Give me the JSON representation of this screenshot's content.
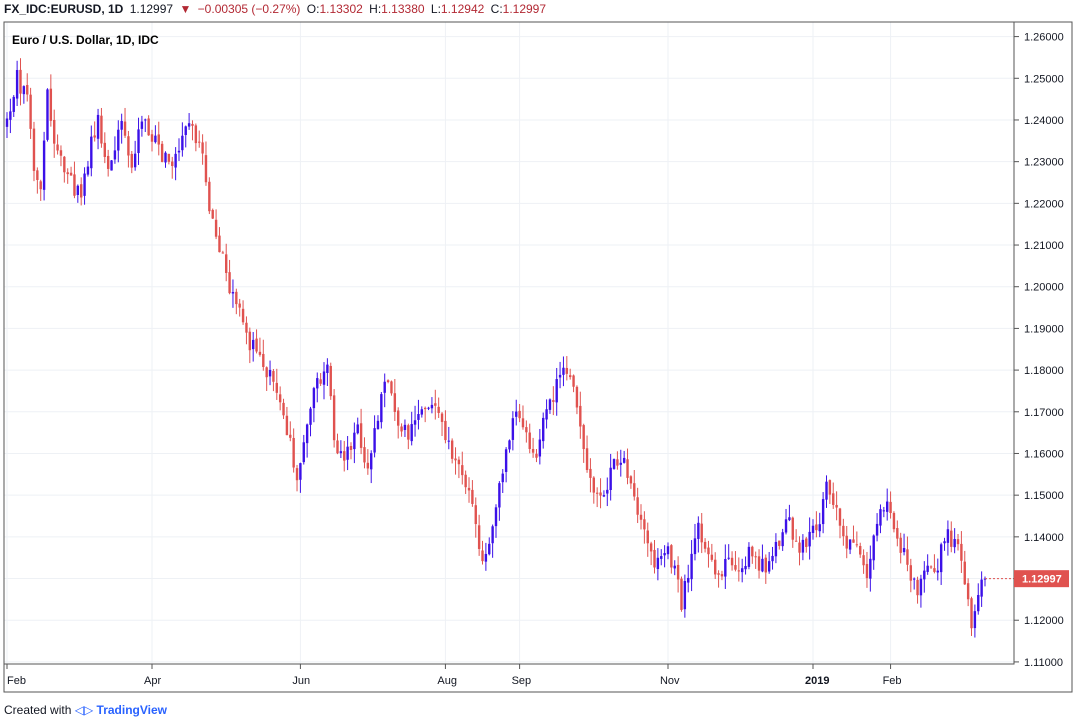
{
  "header": {
    "symbol": "FX_IDC:EURUSD, 1D",
    "last": "1.12997",
    "change": "−0.00305 (−0.27%)",
    "o_label": "O:",
    "o_val": "1.13302",
    "h_label": "H:",
    "h_val": "1.13380",
    "l_label": "L:",
    "l_val": "1.12942",
    "c_label": "C:",
    "c_val": "1.12997"
  },
  "footer": {
    "prefix": "Created with",
    "brand": "TradingView"
  },
  "colors": {
    "up": "#3b10e8",
    "down": "#e0524f",
    "grid": "#eef1f5",
    "axis": "#555555",
    "price_tag": "#e0524f"
  },
  "chart_data": {
    "type": "candlestick",
    "title": "Euro / U.S. Dollar, 1D, IDC",
    "y_ticks": [
      1.11,
      1.12,
      1.13,
      1.14,
      1.15,
      1.16,
      1.17,
      1.18,
      1.19,
      1.2,
      1.21,
      1.22,
      1.23,
      1.24,
      1.25,
      1.26
    ],
    "y_tick_labels": [
      "1.11000",
      "1.12000",
      "1.13000",
      "1.14000",
      "1.15000",
      "1.16000",
      "1.17000",
      "1.18000",
      "1.19000",
      "1.20000",
      "1.21000",
      "1.22000",
      "1.23000",
      "1.24000",
      "1.25000",
      "1.26000"
    ],
    "ylim": [
      1.1095,
      1.2635
    ],
    "x_labels": [
      {
        "label": "Feb",
        "bar": 0
      },
      {
        "label": "Apr",
        "bar": 43
      },
      {
        "label": "Jun",
        "bar": 87
      },
      {
        "label": "Aug",
        "bar": 130
      },
      {
        "label": "Sep",
        "bar": 152
      },
      {
        "label": "Nov",
        "bar": 196
      },
      {
        "label": "2019",
        "bar": 239
      },
      {
        "label": "Feb",
        "bar": 262
      }
    ],
    "bar_count": 291,
    "last_price": 1.12997,
    "last_price_label": "1.12997",
    "close_anchors": [
      [
        0,
        1.239
      ],
      [
        3,
        1.25
      ],
      [
        6,
        1.244
      ],
      [
        8,
        1.228
      ],
      [
        10,
        1.225
      ],
      [
        12,
        1.248
      ],
      [
        14,
        1.234
      ],
      [
        18,
        1.228
      ],
      [
        22,
        1.22
      ],
      [
        25,
        1.236
      ],
      [
        27,
        1.239
      ],
      [
        30,
        1.23
      ],
      [
        34,
        1.238
      ],
      [
        37,
        1.227
      ],
      [
        40,
        1.24
      ],
      [
        43,
        1.237
      ],
      [
        46,
        1.232
      ],
      [
        49,
        1.227
      ],
      [
        52,
        1.238
      ],
      [
        56,
        1.236
      ],
      [
        58,
        1.23
      ],
      [
        60,
        1.22
      ],
      [
        63,
        1.21
      ],
      [
        66,
        1.199
      ],
      [
        69,
        1.196
      ],
      [
        72,
        1.186
      ],
      [
        75,
        1.183
      ],
      [
        78,
        1.178
      ],
      [
        81,
        1.172
      ],
      [
        84,
        1.162
      ],
      [
        86,
        1.153
      ],
      [
        89,
        1.169
      ],
      [
        92,
        1.176
      ],
      [
        95,
        1.18
      ],
      [
        98,
        1.158
      ],
      [
        101,
        1.16
      ],
      [
        104,
        1.165
      ],
      [
        107,
        1.156
      ],
      [
        110,
        1.169
      ],
      [
        113,
        1.178
      ],
      [
        116,
        1.168
      ],
      [
        119,
        1.164
      ],
      [
        122,
        1.171
      ],
      [
        125,
        1.173
      ],
      [
        128,
        1.17
      ],
      [
        131,
        1.162
      ],
      [
        134,
        1.158
      ],
      [
        137,
        1.15
      ],
      [
        140,
        1.138
      ],
      [
        142,
        1.134
      ],
      [
        145,
        1.148
      ],
      [
        148,
        1.162
      ],
      [
        151,
        1.171
      ],
      [
        154,
        1.164
      ],
      [
        157,
        1.161
      ],
      [
        160,
        1.17
      ],
      [
        163,
        1.176
      ],
      [
        165,
        1.181
      ],
      [
        168,
        1.178
      ],
      [
        171,
        1.161
      ],
      [
        174,
        1.152
      ],
      [
        177,
        1.15
      ],
      [
        180,
        1.157
      ],
      [
        183,
        1.158
      ],
      [
        186,
        1.15
      ],
      [
        189,
        1.142
      ],
      [
        192,
        1.134
      ],
      [
        195,
        1.138
      ],
      [
        198,
        1.133
      ],
      [
        200,
        1.123
      ],
      [
        202,
        1.132
      ],
      [
        205,
        1.142
      ],
      [
        208,
        1.136
      ],
      [
        211,
        1.131
      ],
      [
        214,
        1.136
      ],
      [
        217,
        1.133
      ],
      [
        220,
        1.136
      ],
      [
        223,
        1.132
      ],
      [
        226,
        1.134
      ],
      [
        229,
        1.138
      ],
      [
        232,
        1.144
      ],
      [
        235,
        1.136
      ],
      [
        238,
        1.141
      ],
      [
        241,
        1.145
      ],
      [
        243,
        1.152
      ],
      [
        246,
        1.146
      ],
      [
        249,
        1.138
      ],
      [
        252,
        1.136
      ],
      [
        255,
        1.132
      ],
      [
        258,
        1.145
      ],
      [
        261,
        1.149
      ],
      [
        264,
        1.14
      ],
      [
        267,
        1.133
      ],
      [
        270,
        1.127
      ],
      [
        273,
        1.131
      ],
      [
        276,
        1.134
      ],
      [
        279,
        1.14
      ],
      [
        282,
        1.136
      ],
      [
        284,
        1.129
      ],
      [
        286,
        1.119
      ],
      [
        288,
        1.126
      ],
      [
        290,
        1.12997
      ]
    ],
    "seed": 20180
  }
}
